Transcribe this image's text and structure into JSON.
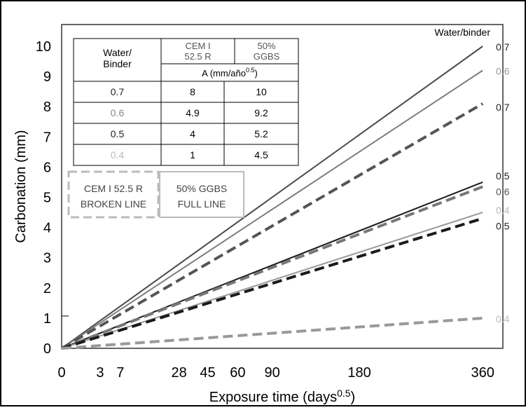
{
  "chart_data": {
    "type": "line",
    "title": "",
    "xlabel": "Exposure time (days",
    "xlabel_sup": "0.5",
    "xlabel_close": ")",
    "ylabel": "Carbonation (mm)",
    "ylim": [
      0,
      10
    ],
    "xlim": [
      0,
      19
    ],
    "x_scale": "sqrt",
    "y_ticks": [
      "0",
      "1",
      "2",
      "3",
      "4",
      "5",
      "6",
      "7",
      "8",
      "9",
      "10"
    ],
    "x_ticks": [
      {
        "label": "0",
        "days": 0
      },
      {
        "label": "3",
        "days": 3
      },
      {
        "label": "7",
        "days": 7
      },
      {
        "label": "28",
        "days": 28
      },
      {
        "label": "45",
        "days": 45
      },
      {
        "label": "60",
        "days": 60
      },
      {
        "label": "90",
        "days": 90
      },
      {
        "label": "180",
        "days": 180
      },
      {
        "label": "360",
        "days": 360
      }
    ],
    "series_label_header": "Water/binder",
    "series": [
      {
        "binder": "50% GGBS",
        "label": "0.7",
        "A": 10,
        "color": "#4a4a4a",
        "dashed": false,
        "end_y": 10.0,
        "label_color": "#222222"
      },
      {
        "binder": "50% GGBS",
        "label": "0.6",
        "A": 9.2,
        "color": "#7d7d7d",
        "dashed": false,
        "end_y": 9.2,
        "label_color": "#999999"
      },
      {
        "binder": "CEM I 52.5 R",
        "label": "0.7",
        "A": 8,
        "color": "#555555",
        "dashed": true,
        "end_y": 8.1,
        "label_color": "#222222"
      },
      {
        "binder": "50% GGBS",
        "label": "0.5",
        "A": 5.2,
        "color": "#1a1a1a",
        "dashed": false,
        "end_y": 5.5,
        "label_color": "#222222"
      },
      {
        "binder": "CEM I 52.5 R",
        "label": "0.6",
        "A": 4.9,
        "color": "#777777",
        "dashed": true,
        "end_y": 5.35,
        "label_color": "#555555"
      },
      {
        "binder": "50% GGBS",
        "label": "0.4",
        "A": 4.5,
        "color": "#999999",
        "dashed": false,
        "end_y": 4.5,
        "label_color": "#bbbbbb"
      },
      {
        "binder": "CEM I 52.5 R",
        "label": "0.5",
        "A": 4,
        "color": "#1a1a1a",
        "dashed": true,
        "end_y": 4.3,
        "label_color": "#222222"
      },
      {
        "binder": "CEM I 52.5 R",
        "label": "0.4",
        "A": 1,
        "color": "#999999",
        "dashed": true,
        "end_y": 1.0,
        "label_color": "#bbbbbb"
      }
    ],
    "table": {
      "header_col1": "Water/\nBinder",
      "header_cem": "CEM I\n52.5 R",
      "header_ggbs": "50%\nGGBS",
      "header_unit": "A (mm/año",
      "header_unit_sup": "0.5",
      "header_unit_close": ")",
      "rows": [
        {
          "wb": "0.7",
          "cem": "8",
          "ggbs": "10",
          "wb_color": "#222222"
        },
        {
          "wb": "0.6",
          "cem": "4.9",
          "ggbs": "9.2",
          "wb_color": "#888888"
        },
        {
          "wb": "0.5",
          "cem": "4",
          "ggbs": "5.2",
          "wb_color": "#222222"
        },
        {
          "wb": "0.4",
          "cem": "1",
          "ggbs": "4.5",
          "wb_color": "#bbbbbb"
        }
      ]
    },
    "legend": {
      "dashed_line1": "CEM I 52.5 R",
      "dashed_line2": "BROKEN LINE",
      "full_line1": "50% GGBS",
      "full_line2": "FULL LINE"
    },
    "grid": false
  }
}
